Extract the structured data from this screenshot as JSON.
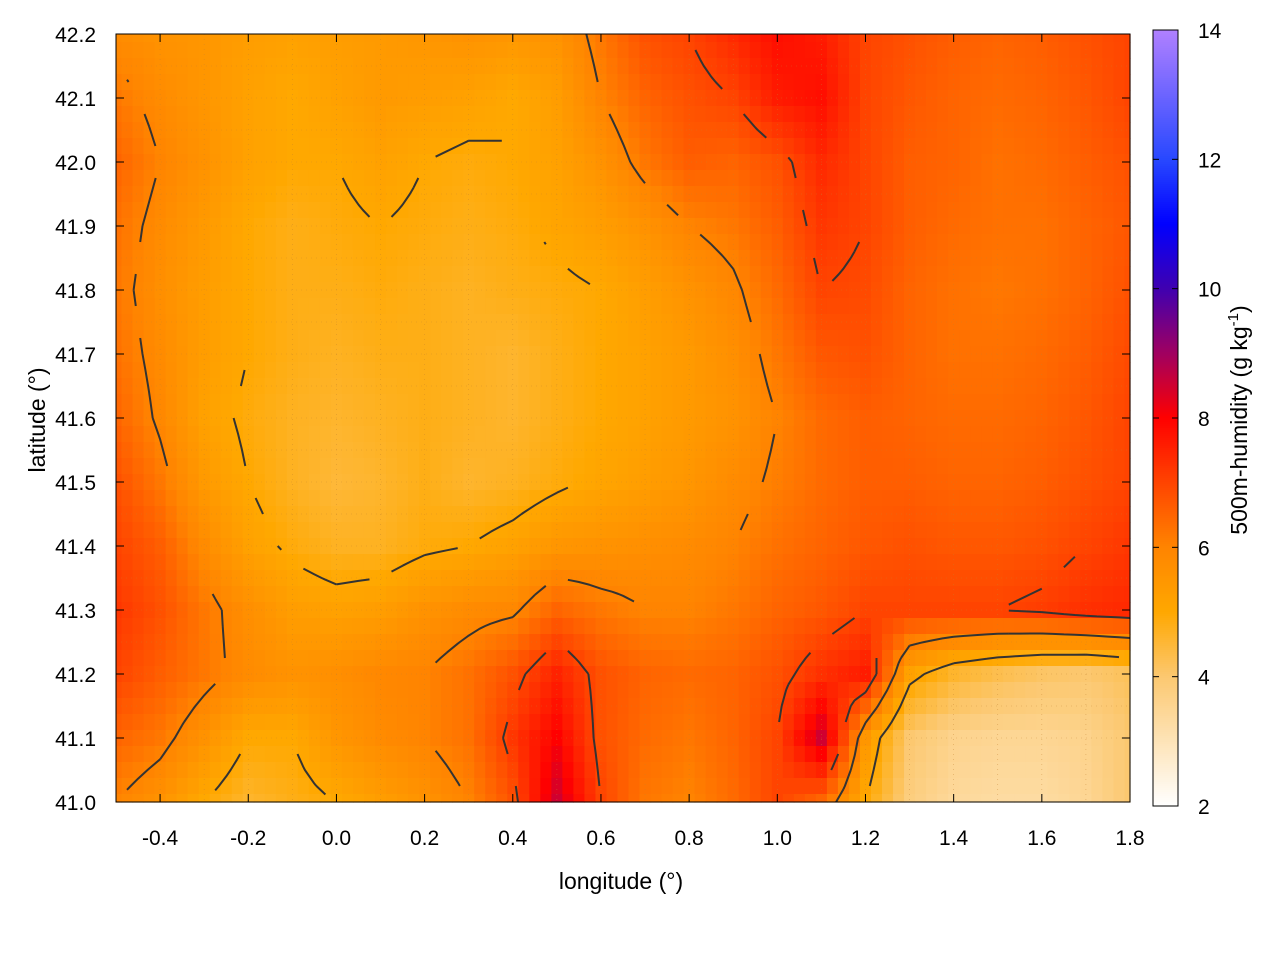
{
  "chart_data": {
    "type": "heatmap",
    "xlabel": "longitude (°)",
    "ylabel": "latitude (°)",
    "colorbar_label": "500m-humidity (g kg",
    "colorbar_label_sup": "-1",
    "colorbar_label_end": ")",
    "xlim": [
      -0.5,
      1.8
    ],
    "ylim": [
      41.0,
      42.2
    ],
    "clim": [
      2,
      14
    ],
    "x_ticks": [
      "-0.4",
      "-0.2",
      "0.0",
      "0.2",
      "0.4",
      "0.6",
      "0.8",
      "1.0",
      "1.2",
      "1.4",
      "1.6",
      "1.8"
    ],
    "y_ticks": [
      "41.0",
      "41.1",
      "41.2",
      "41.3",
      "41.4",
      "41.5",
      "41.6",
      "41.7",
      "41.8",
      "41.9",
      "42.0",
      "42.1",
      "42.2"
    ],
    "colorbar_ticks": [
      "2",
      "4",
      "6",
      "8",
      "10",
      "12",
      "14"
    ],
    "grid": true,
    "contours": true,
    "palette": [
      {
        "v": 2,
        "c": "#ffffff"
      },
      {
        "v": 4,
        "c": "#fcc870"
      },
      {
        "v": 5,
        "c": "#ffa800"
      },
      {
        "v": 6,
        "c": "#ff8400"
      },
      {
        "v": 7,
        "c": "#ff4400"
      },
      {
        "v": 8,
        "c": "#ff0000"
      },
      {
        "v": 9,
        "c": "#a00060"
      },
      {
        "v": 10,
        "c": "#4000b0"
      },
      {
        "v": 11,
        "c": "#0000ff"
      },
      {
        "v": 12,
        "c": "#2848ff"
      },
      {
        "v": 14,
        "c": "#b080ff"
      }
    ],
    "lon": [
      -0.5,
      -0.4,
      -0.3,
      -0.2,
      -0.1,
      0.0,
      0.1,
      0.2,
      0.3,
      0.4,
      0.5,
      0.6,
      0.7,
      0.8,
      0.9,
      1.0,
      1.1,
      1.2,
      1.3,
      1.4,
      1.5,
      1.6,
      1.7,
      1.8
    ],
    "lat": [
      42.2,
      42.1,
      42.0,
      41.9,
      41.8,
      41.7,
      41.6,
      41.5,
      41.4,
      41.3,
      41.2,
      41.1,
      41.0
    ],
    "values": [
      [
        5.8,
        5.6,
        5.5,
        5.3,
        5.2,
        5.3,
        5.4,
        5.5,
        5.6,
        5.5,
        5.6,
        6.2,
        6.8,
        7.0,
        7.4,
        7.8,
        7.6,
        7.0,
        6.8,
        6.6,
        6.5,
        6.6,
        6.8,
        7.0
      ],
      [
        6.2,
        5.8,
        5.5,
        5.2,
        5.0,
        5.2,
        5.4,
        5.3,
        5.2,
        5.0,
        5.3,
        6.0,
        6.5,
        6.8,
        7.0,
        7.6,
        7.8,
        7.0,
        6.7,
        6.5,
        6.4,
        6.5,
        6.7,
        7.0
      ],
      [
        6.5,
        6.0,
        5.6,
        5.2,
        5.0,
        5.0,
        5.2,
        5.0,
        4.9,
        5.0,
        5.2,
        5.6,
        6.2,
        6.6,
        6.5,
        6.8,
        7.4,
        7.0,
        6.6,
        6.5,
        6.3,
        6.4,
        6.6,
        6.8
      ],
      [
        6.3,
        5.8,
        5.4,
        5.0,
        4.8,
        4.9,
        5.0,
        4.9,
        4.8,
        4.9,
        5.1,
        5.3,
        5.6,
        6.0,
        6.2,
        6.6,
        7.2,
        7.0,
        6.6,
        6.4,
        6.3,
        6.3,
        6.5,
        6.7
      ],
      [
        6.2,
        5.7,
        5.3,
        5.0,
        4.8,
        4.8,
        4.9,
        4.8,
        4.7,
        4.8,
        4.9,
        5.0,
        5.3,
        5.6,
        5.9,
        6.4,
        7.0,
        6.9,
        6.5,
        6.3,
        6.2,
        6.3,
        6.5,
        6.8
      ],
      [
        6.3,
        5.8,
        5.3,
        5.0,
        4.8,
        4.7,
        4.8,
        4.8,
        4.7,
        4.6,
        4.8,
        5.0,
        5.2,
        5.4,
        5.7,
        6.2,
        6.7,
        6.8,
        6.5,
        6.3,
        6.3,
        6.4,
        6.6,
        6.9
      ],
      [
        6.5,
        5.9,
        5.2,
        4.9,
        4.7,
        4.6,
        4.7,
        4.8,
        4.7,
        4.6,
        4.8,
        5.0,
        5.2,
        5.4,
        5.6,
        6.0,
        6.4,
        6.6,
        6.5,
        6.4,
        6.4,
        6.5,
        6.7,
        7.0
      ],
      [
        6.8,
        6.2,
        5.4,
        5.0,
        4.7,
        4.5,
        4.6,
        4.8,
        4.6,
        4.7,
        4.9,
        5.1,
        5.3,
        5.5,
        5.8,
        6.1,
        6.4,
        6.6,
        6.6,
        6.5,
        6.5,
        6.6,
        6.8,
        7.0
      ],
      [
        7.0,
        6.6,
        5.8,
        5.2,
        4.9,
        4.7,
        4.7,
        4.9,
        5.0,
        5.2,
        5.5,
        5.6,
        5.7,
        5.8,
        6.0,
        6.3,
        6.5,
        6.7,
        6.8,
        6.7,
        6.7,
        6.8,
        7.0,
        7.2
      ],
      [
        7.2,
        6.8,
        6.2,
        5.7,
        5.3,
        5.2,
        5.3,
        5.6,
        5.8,
        5.9,
        6.5,
        6.2,
        6.0,
        6.0,
        6.2,
        6.5,
        6.7,
        7.0,
        7.0,
        7.0,
        7.0,
        7.1,
        7.3,
        7.4
      ],
      [
        7.0,
        6.6,
        6.2,
        5.8,
        5.6,
        5.7,
        5.9,
        6.0,
        6.3,
        6.8,
        7.5,
        6.8,
        6.5,
        6.4,
        6.5,
        6.8,
        7.3,
        7.6,
        5.2,
        4.6,
        4.3,
        4.1,
        4.0,
        4.2
      ],
      [
        6.5,
        6.2,
        5.6,
        5.0,
        5.0,
        5.5,
        5.8,
        6.0,
        6.3,
        7.2,
        8.0,
        6.8,
        6.4,
        6.2,
        6.5,
        7.0,
        8.5,
        5.5,
        4.0,
        3.6,
        3.5,
        3.5,
        3.6,
        4.0
      ],
      [
        6.0,
        5.6,
        5.0,
        4.6,
        4.8,
        5.0,
        5.3,
        5.6,
        6.0,
        6.8,
        8.5,
        7.0,
        6.2,
        6.0,
        6.4,
        7.0,
        6.5,
        5.0,
        3.8,
        3.4,
        3.3,
        3.3,
        3.5,
        4.0
      ]
    ]
  }
}
